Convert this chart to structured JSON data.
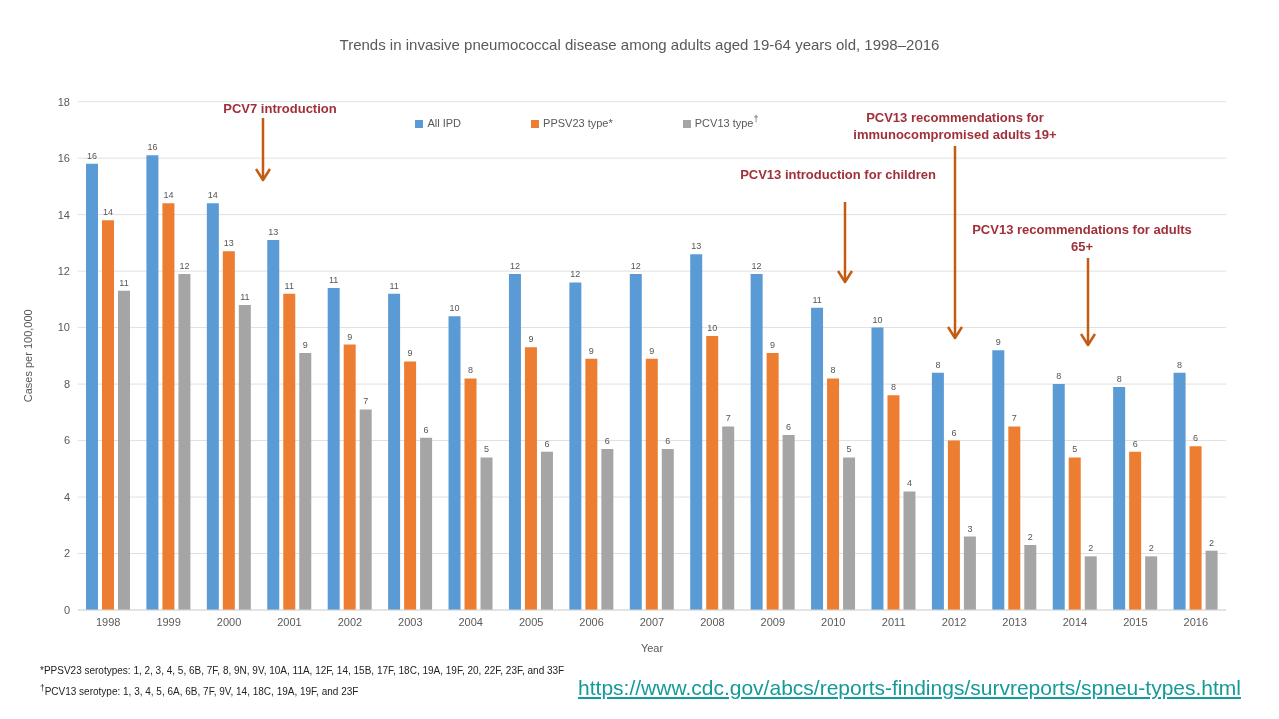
{
  "chart_data": {
    "type": "bar",
    "title": "Trends in invasive pneumococcal disease among adults aged 19-64 years old, 1998–2016",
    "xlabel": "Year",
    "ylabel": "Cases per 100,000",
    "categories": [
      "1998",
      "1999",
      "2000",
      "2001",
      "2002",
      "2003",
      "2004",
      "2005",
      "2006",
      "2007",
      "2008",
      "2009",
      "2010",
      "2011",
      "2012",
      "2013",
      "2014",
      "2015",
      "2016"
    ],
    "series": [
      {
        "name": "All IPD",
        "color": "#5b9bd5",
        "values": [
          15.8,
          16.1,
          14.4,
          13.1,
          11.4,
          11.2,
          10.4,
          11.9,
          11.6,
          11.9,
          12.6,
          11.9,
          10.7,
          10.0,
          8.4,
          9.2,
          8.0,
          7.9,
          8.4
        ],
        "value_labels": [
          "16",
          "16",
          "14",
          "13",
          "11",
          "11",
          "10",
          "12",
          "12",
          "12",
          "13",
          "12",
          "11",
          "10",
          "8",
          "9",
          "8",
          "8",
          "8"
        ]
      },
      {
        "name": "PPSV23 type*",
        "color": "#ed7d31",
        "values": [
          13.8,
          14.4,
          12.7,
          11.2,
          9.4,
          8.8,
          8.2,
          9.3,
          8.9,
          8.9,
          9.7,
          9.1,
          8.2,
          7.6,
          6.0,
          6.5,
          5.4,
          5.6,
          5.8
        ],
        "value_labels": [
          "14",
          "14",
          "13",
          "11",
          "9",
          "9",
          "8",
          "9",
          "9",
          "9",
          "10",
          "9",
          "8",
          "8",
          "6",
          "7",
          "5",
          "6",
          "6"
        ]
      },
      {
        "name": "PCV13 type$^{†}$",
        "color": "#a5a5a5",
        "values": [
          11.3,
          11.9,
          10.8,
          9.1,
          7.1,
          6.1,
          5.4,
          5.6,
          5.7,
          5.7,
          6.5,
          6.2,
          5.4,
          4.2,
          2.6,
          2.3,
          1.9,
          1.9,
          2.1
        ],
        "value_labels": [
          "11",
          "12",
          "11",
          "9",
          "7",
          "6",
          "5",
          "6",
          "6",
          "6",
          "7",
          "6",
          "5",
          "4",
          "3",
          "2",
          "2",
          "2",
          "2"
        ]
      }
    ],
    "ylim": [
      0,
      18
    ],
    "yticks": [
      0,
      2,
      4,
      6,
      8,
      10,
      12,
      14,
      16,
      18
    ],
    "grid": "y",
    "legend": "top",
    "annotations": [
      "PCV7 introduction",
      "PCV13 introduction for children",
      "PCV13 recommendations for immunocompromised adults 19+",
      "PCV13 recommendations for adults 65+",
      "*PPSV23 serotypes: 1, 2, 3, 4, 5, 6B, 7F, 8, 9N, 9V, 10A, 11A, 12F, 14, 15B, 17F, 18C, 19A, 19F, 20, 22F, 23F, and 33F",
      "$^{†}$PCV13 serotype: 1, 3, 4, 5, 6A, 6B, 7F, 9V, 14, 18C, 19A, 19F, and 23F",
      "https://www.cdc.gov/abcs/reports-findings/survreports/spneu-types.html"
    ]
  }
}
